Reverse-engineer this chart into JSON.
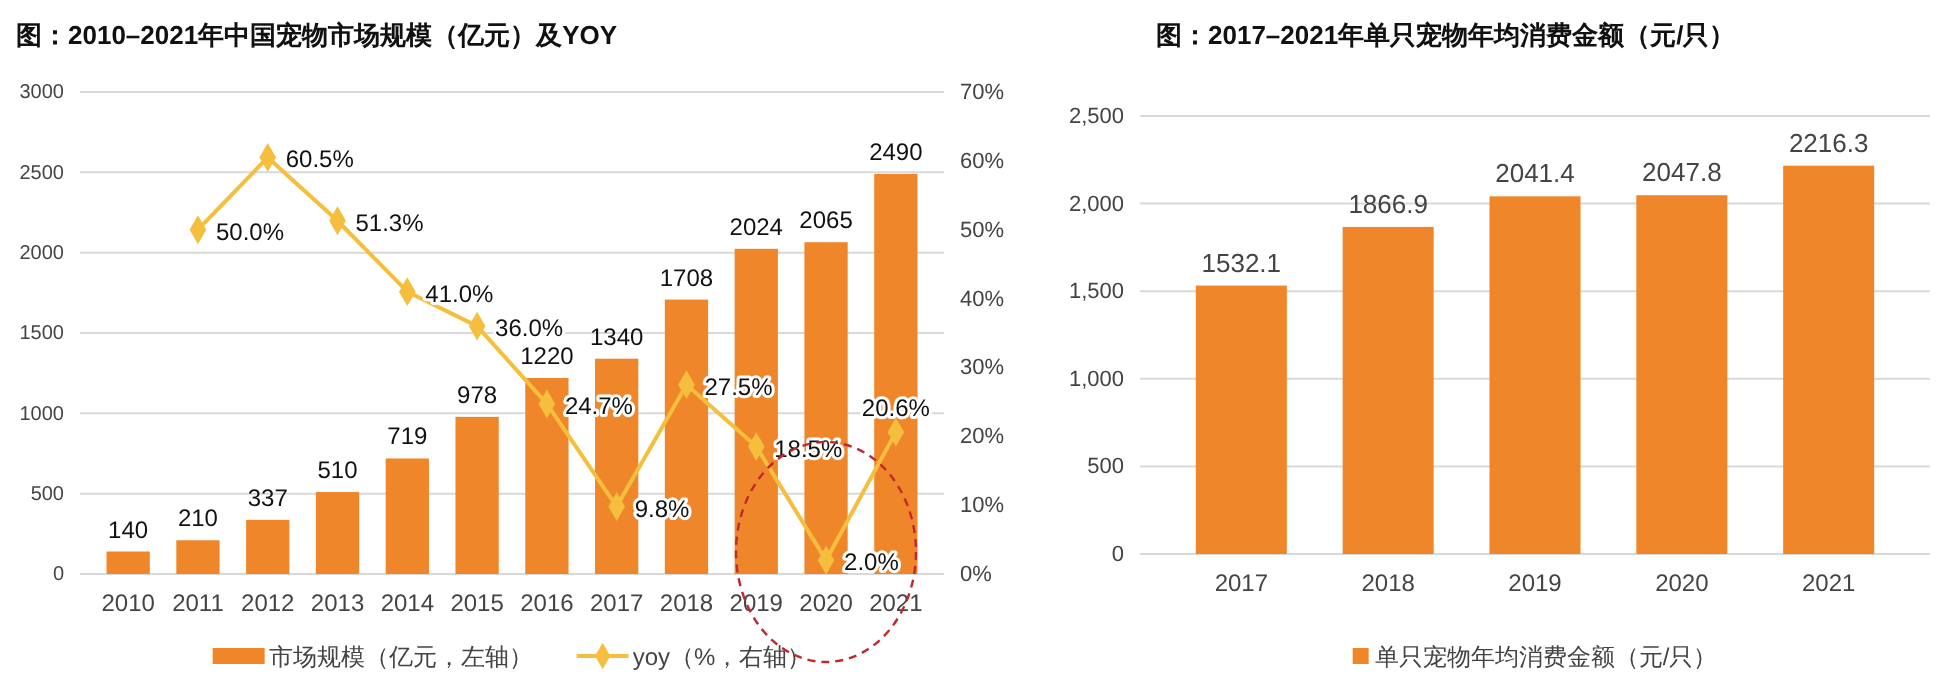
{
  "chart_data": [
    {
      "type": "bar",
      "title": "图：2010–2021年中国宠物市场规模（亿元）及YOY",
      "categories": [
        "2010",
        "2011",
        "2012",
        "2013",
        "2014",
        "2015",
        "2016",
        "2017",
        "2018",
        "2019",
        "2020",
        "2021"
      ],
      "series": [
        {
          "name": "市场规模（亿元，左轴）",
          "color": "#f0862a",
          "values": [
            140,
            210,
            337,
            510,
            719,
            978,
            1220,
            1340,
            1708,
            2024,
            2065,
            2490
          ],
          "value_labels": [
            "140",
            "210",
            "337",
            "510",
            "719",
            "978",
            "1220",
            "1340",
            "1708",
            "2024",
            "2065",
            "2490"
          ]
        },
        {
          "name": "yoy（%，右轴）",
          "type": "line",
          "axis": "y2",
          "color": "#f5be3c",
          "marker": "diamond",
          "values": [
            null,
            50.0,
            60.5,
            51.3,
            41.0,
            36.0,
            24.7,
            9.8,
            27.5,
            18.5,
            2.0,
            20.6
          ],
          "value_labels": [
            null,
            "50.0%",
            "60.5%",
            "51.3%",
            "41.0%",
            "36.0%",
            "24.7%",
            "9.8%",
            "27.5%",
            "18.5%",
            "2.0%",
            "20.6%"
          ]
        }
      ],
      "ylim": [
        0,
        3000
      ],
      "yticks": [
        0,
        500,
        1000,
        1500,
        2000,
        2500,
        3000
      ],
      "y2lim": [
        0,
        70
      ],
      "y2ticks": [
        {
          "value": 0,
          "label": "0%"
        },
        {
          "value": 10,
          "label": "10%"
        },
        {
          "value": 20,
          "label": "20%"
        },
        {
          "value": 30,
          "label": "30%"
        },
        {
          "value": 40,
          "label": "40%"
        },
        {
          "value": 50,
          "label": "50%"
        },
        {
          "value": 60,
          "label": "60%"
        },
        {
          "value": 70,
          "label": "70%"
        }
      ],
      "grid": "y",
      "legend": "bottom"
    },
    {
      "type": "bar",
      "title": "图：2017–2021年单只宠物年均消费金额（元/只）",
      "categories": [
        "2017",
        "2018",
        "2019",
        "2020",
        "2021"
      ],
      "series": [
        {
          "name": "单只宠物年均消费金额（元/只）",
          "color": "#f0862a",
          "values": [
            1532.1,
            1866.9,
            2041.4,
            2047.8,
            2216.3
          ]
        }
      ],
      "ylim": [
        0,
        2500
      ],
      "yticks": [
        0,
        500,
        {
          "value": 1000,
          "label": "1,000"
        },
        {
          "value": 1500,
          "label": "1,500"
        },
        {
          "value": 2000,
          "label": "2,000"
        },
        {
          "value": 2500,
          "label": "2,500"
        }
      ],
      "data_labels": true,
      "grid": "y",
      "legend": "bottom"
    }
  ]
}
